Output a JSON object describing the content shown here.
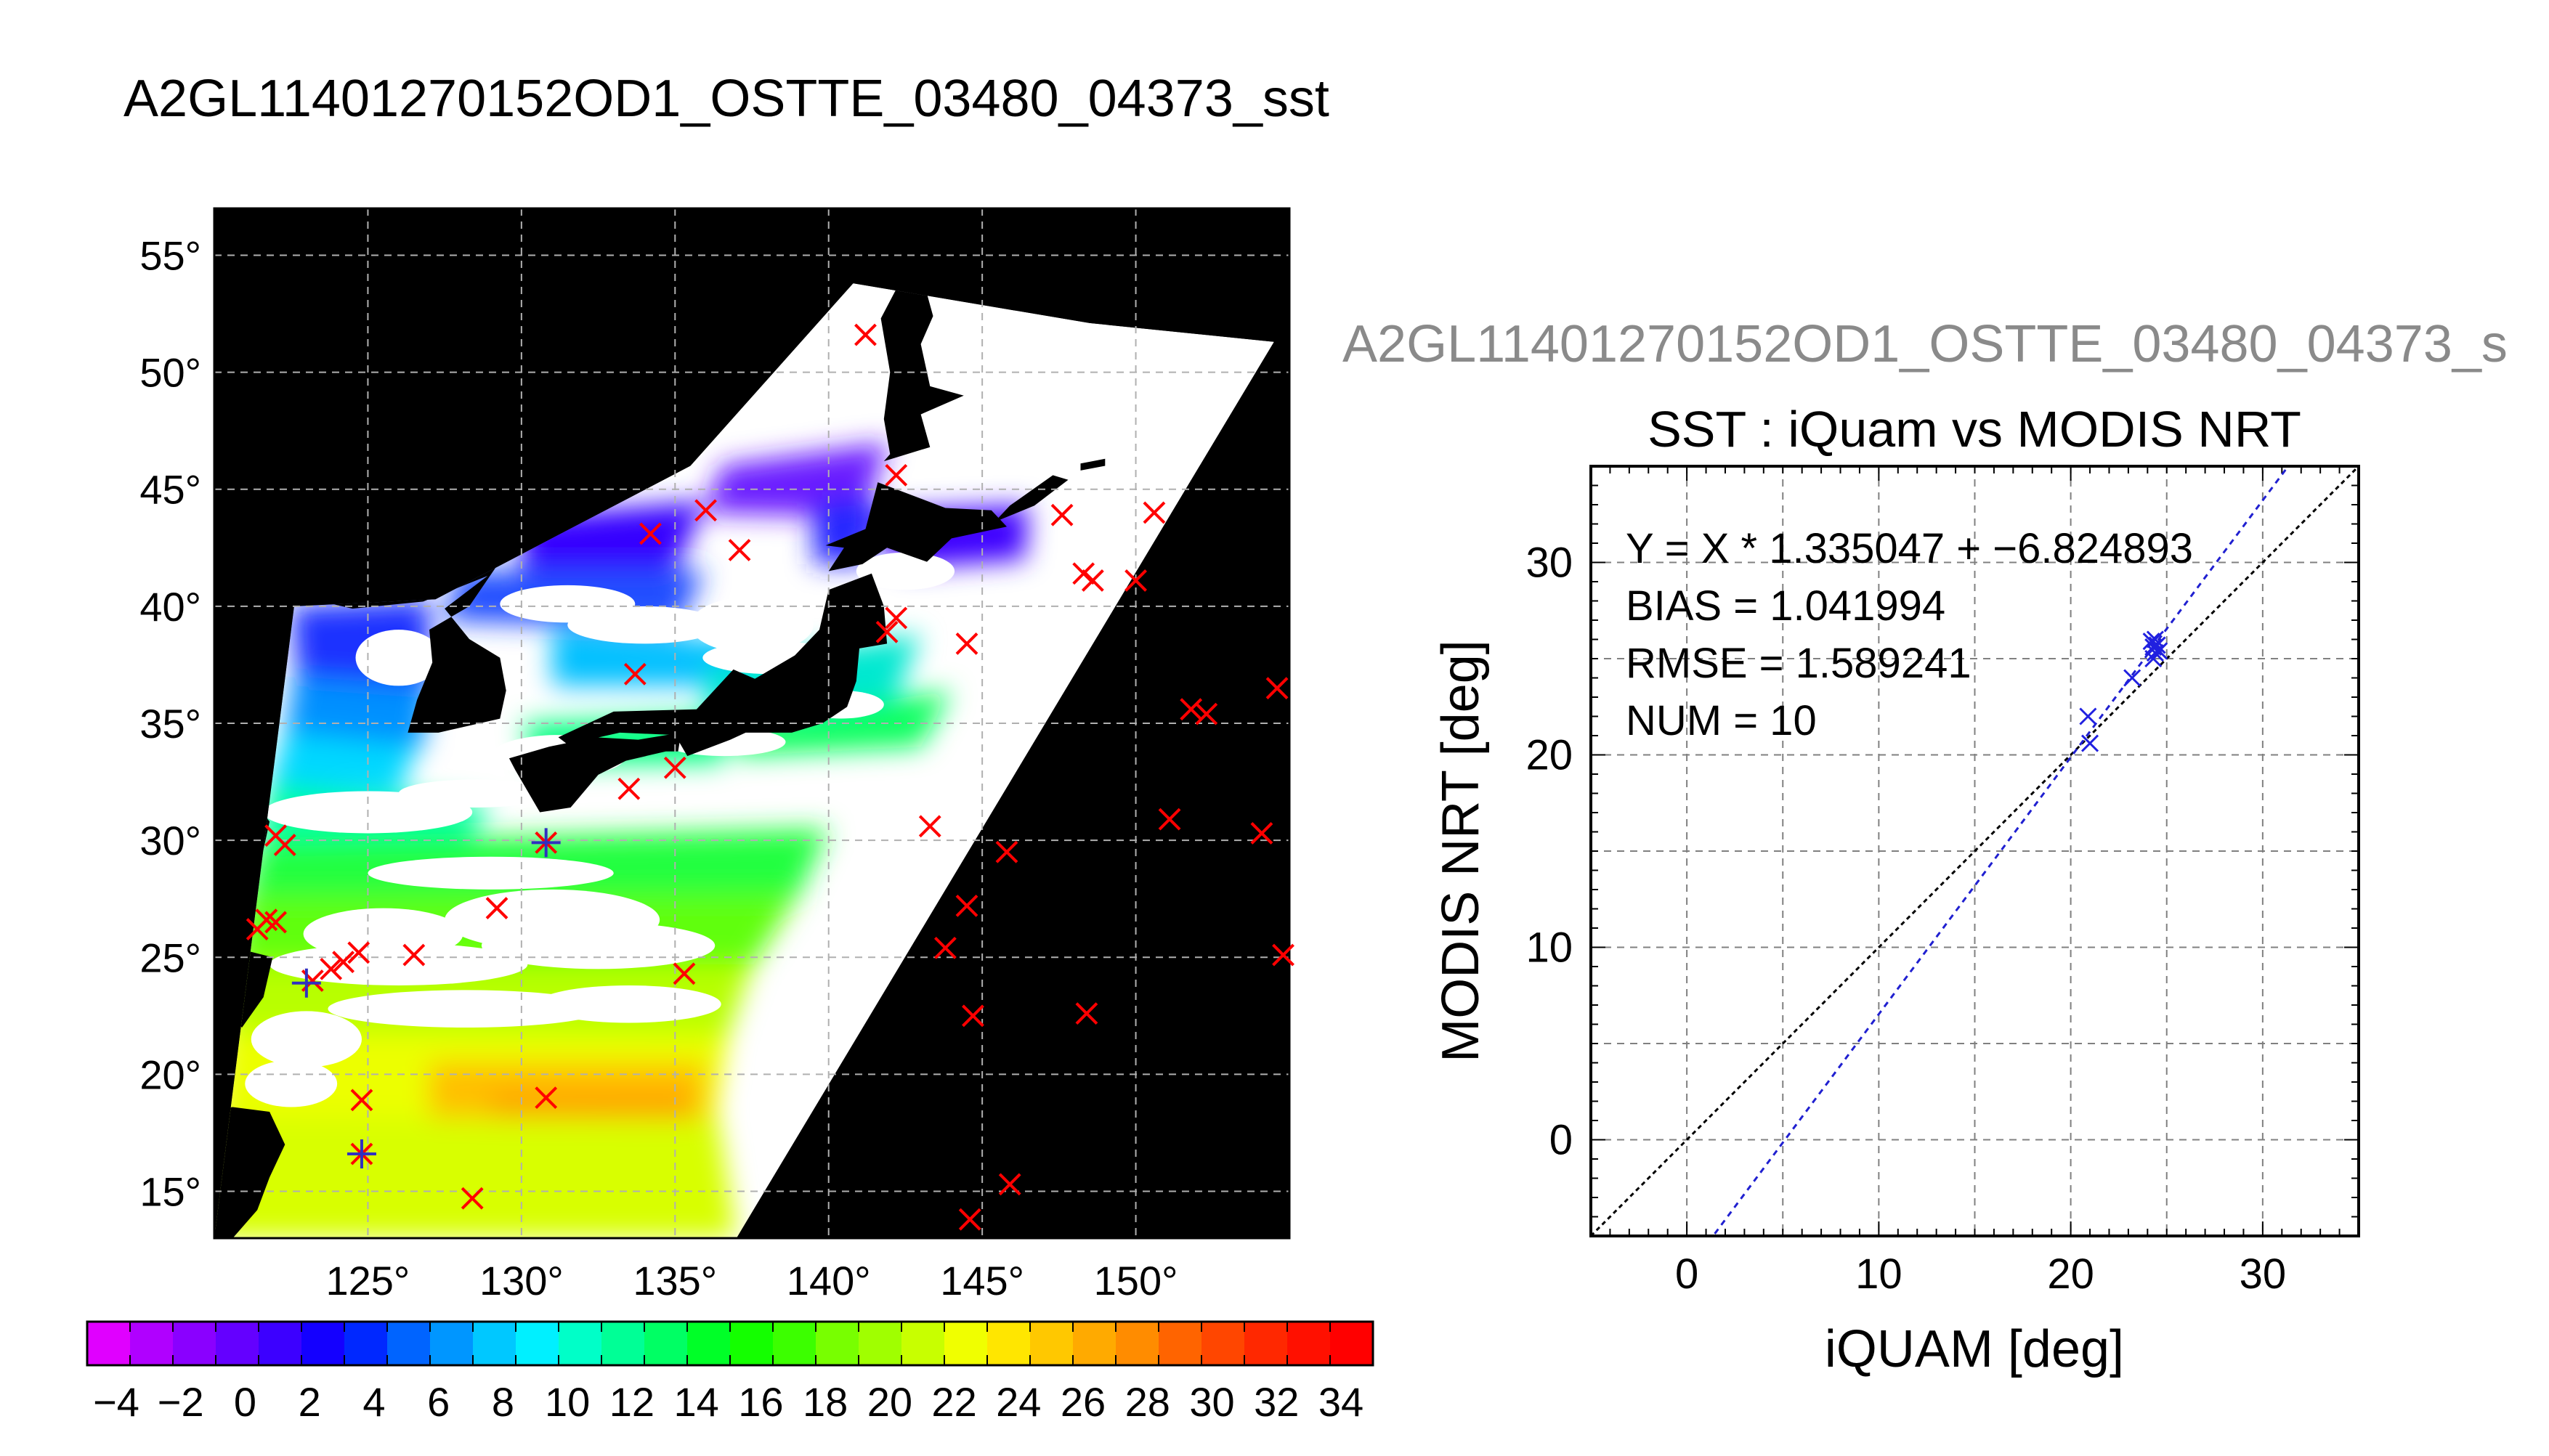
{
  "main_title": "A2GL11401270152OD1_OSTTE_03480_04373_sst",
  "map": {
    "lon_range": [
      120,
      155
    ],
    "lat_range": [
      13,
      57
    ],
    "lon_ticks": [
      125,
      130,
      135,
      140,
      145,
      150
    ],
    "lat_ticks": [
      15,
      20,
      25,
      30,
      35,
      40,
      45,
      50,
      55
    ],
    "degree_symbol": "°",
    "colors": {
      "ocean_background": "#000000",
      "cloud_mask": "#ffffff",
      "marker_red": "#ff0000",
      "marker_blue": "#3030c0"
    },
    "swath": [
      [
        122.6,
        40.0
      ],
      [
        127.2,
        40.3
      ],
      [
        135.5,
        46.0
      ],
      [
        140.8,
        53.8
      ],
      [
        148.5,
        52.1
      ],
      [
        154.5,
        51.3
      ],
      [
        137.0,
        13.0
      ],
      [
        120.0,
        13.0
      ]
    ],
    "red_markers": [
      [
        141.2,
        51.6
      ],
      [
        142.2,
        45.6
      ],
      [
        134.2,
        43.1
      ],
      [
        136.0,
        44.1
      ],
      [
        137.1,
        42.4
      ],
      [
        147.6,
        43.9
      ],
      [
        150.6,
        44.0
      ],
      [
        148.3,
        41.4
      ],
      [
        148.6,
        41.1
      ],
      [
        150.0,
        41.1
      ],
      [
        141.9,
        38.9
      ],
      [
        142.2,
        39.5
      ],
      [
        144.5,
        38.4
      ],
      [
        133.7,
        37.1
      ],
      [
        151.8,
        35.6
      ],
      [
        152.3,
        35.4
      ],
      [
        154.6,
        36.5
      ],
      [
        133.5,
        32.2
      ],
      [
        135.0,
        33.1
      ],
      [
        130.8,
        29.9
      ],
      [
        122.0,
        30.2
      ],
      [
        122.3,
        29.8
      ],
      [
        143.3,
        30.6
      ],
      [
        145.8,
        29.5
      ],
      [
        151.1,
        30.9
      ],
      [
        154.1,
        30.3
      ],
      [
        121.7,
        26.6
      ],
      [
        121.4,
        26.2
      ],
      [
        122.0,
        26.5
      ],
      [
        129.2,
        27.1
      ],
      [
        144.5,
        27.2
      ],
      [
        126.5,
        25.1
      ],
      [
        124.7,
        25.2
      ],
      [
        124.2,
        24.8
      ],
      [
        123.8,
        24.5
      ],
      [
        123.2,
        24.0
      ],
      [
        143.8,
        25.4
      ],
      [
        135.3,
        24.3
      ],
      [
        154.8,
        25.1
      ],
      [
        144.7,
        22.5
      ],
      [
        148.4,
        22.6
      ],
      [
        124.8,
        18.9
      ],
      [
        130.8,
        19.0
      ],
      [
        124.8,
        16.6
      ],
      [
        145.9,
        15.3
      ],
      [
        128.4,
        14.7
      ],
      [
        144.6,
        13.8
      ]
    ],
    "blue_markers": [
      [
        130.8,
        29.9
      ],
      [
        123.0,
        23.9
      ],
      [
        124.8,
        16.6
      ]
    ]
  },
  "colorbar": {
    "tick_labels": [
      "−4",
      "−2",
      "0",
      "2",
      "4",
      "6",
      "8",
      "10",
      "12",
      "14",
      "16",
      "18",
      "20",
      "22",
      "24",
      "26",
      "28",
      "30",
      "32",
      "34"
    ],
    "colors": [
      "#e000ff",
      "#b000ff",
      "#8a00ff",
      "#6400ff",
      "#3c00ff",
      "#1400ff",
      "#0028ff",
      "#0064ff",
      "#0096ff",
      "#00c8ff",
      "#00f0ff",
      "#00ffc8",
      "#00ff96",
      "#00ff64",
      "#00ff28",
      "#14ff00",
      "#3cff00",
      "#78ff00",
      "#a0ff00",
      "#c8ff00",
      "#f0ff00",
      "#ffe600",
      "#ffc800",
      "#ffaa00",
      "#ff8c00",
      "#ff6400",
      "#ff4600",
      "#ff2800",
      "#ff1000",
      "#ff0000"
    ]
  },
  "chart_data": {
    "type": "scatter",
    "header": "A2GL11401270152OD1_OSTTE_03480_04373_s",
    "title": "SST : iQuam vs MODIS NRT",
    "xlabel": "iQUAM [deg]",
    "ylabel": "MODIS NRT [deg]",
    "xlim": [
      -5,
      35
    ],
    "ylim": [
      -5,
      35
    ],
    "xticks": [
      0,
      10,
      20,
      30
    ],
    "yticks": [
      0,
      10,
      20,
      30
    ],
    "grid": true,
    "annotations": [
      "Y = X * 1.335047 + −6.824893",
      "BIAS = 1.041994",
      "RMSE = 1.589241",
      "NUM = 10"
    ],
    "fit": {
      "slope": 1.335047,
      "intercept": -6.824893
    },
    "points": [
      {
        "x": 20.9,
        "y": 22.0
      },
      {
        "x": 21.0,
        "y": 20.6
      },
      {
        "x": 23.2,
        "y": 24.0
      },
      {
        "x": 24.2,
        "y": 25.9
      },
      {
        "x": 24.3,
        "y": 25.6
      },
      {
        "x": 24.4,
        "y": 25.3
      },
      {
        "x": 24.3,
        "y": 25.0
      },
      {
        "x": 24.5,
        "y": 25.7
      },
      {
        "x": 24.6,
        "y": 25.4
      },
      {
        "x": 24.4,
        "y": 26.0
      }
    ],
    "colors": {
      "points": "#2020e0",
      "fit_line": "#2020d0",
      "identity_line": "#000000",
      "grid": "#808080"
    }
  }
}
